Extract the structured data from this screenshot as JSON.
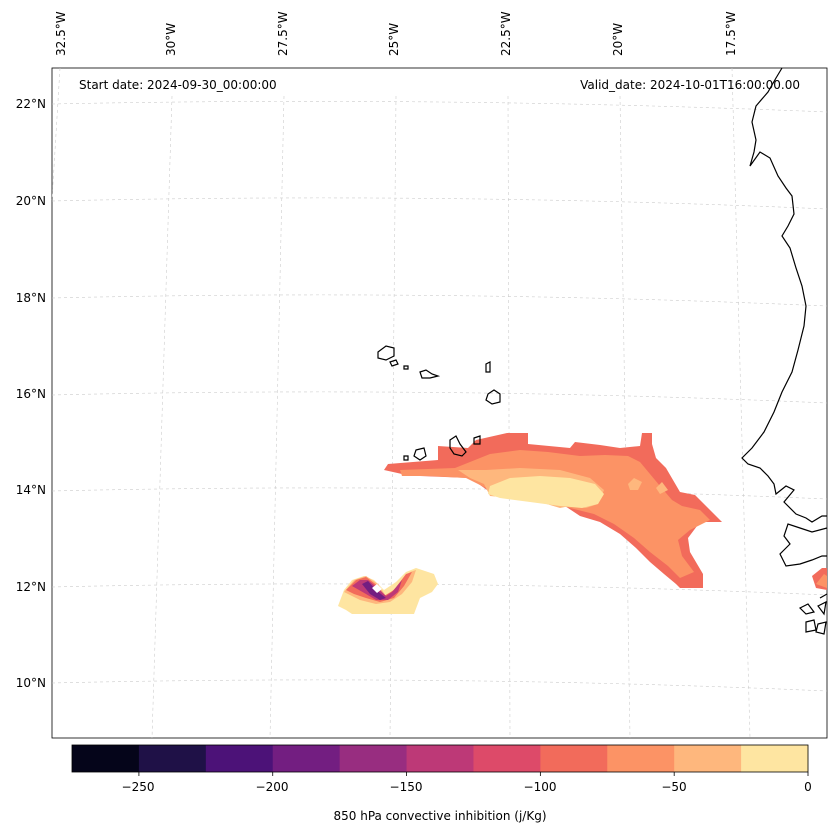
{
  "map": {
    "start_date": "Start date: 2024-09-30_00:00:00",
    "valid_date": "Valid_date: 2024-10-01T16:00:00.00",
    "lon_labels": [
      "32.5°W",
      "30°W",
      "27.5°W",
      "25°W",
      "22.5°W",
      "20°W",
      "17.5°W"
    ],
    "lat_labels": [
      "22°N",
      "20°N",
      "18°N",
      "16°N",
      "14°N",
      "12°N",
      "10°N"
    ],
    "coastline_color": "#000000",
    "gridline_color": "#cccccc"
  },
  "colorbar": {
    "label": "850 hPa convective inhibition (j/Kg)",
    "ticks": [
      "−250",
      "−200",
      "−150",
      "−100",
      "−50",
      "0"
    ],
    "tick_values": [
      -250,
      -200,
      -150,
      -100,
      -50,
      0
    ],
    "range": [
      -275,
      0
    ],
    "colors": [
      "#05051a",
      "#1f1147",
      "#4c1278",
      "#731e81",
      "#982d80",
      "#bd3977",
      "#dd4a69",
      "#f26b5b",
      "#fc9365",
      "#feb77d",
      "#fee5a1"
    ],
    "colormap": "magma"
  }
}
